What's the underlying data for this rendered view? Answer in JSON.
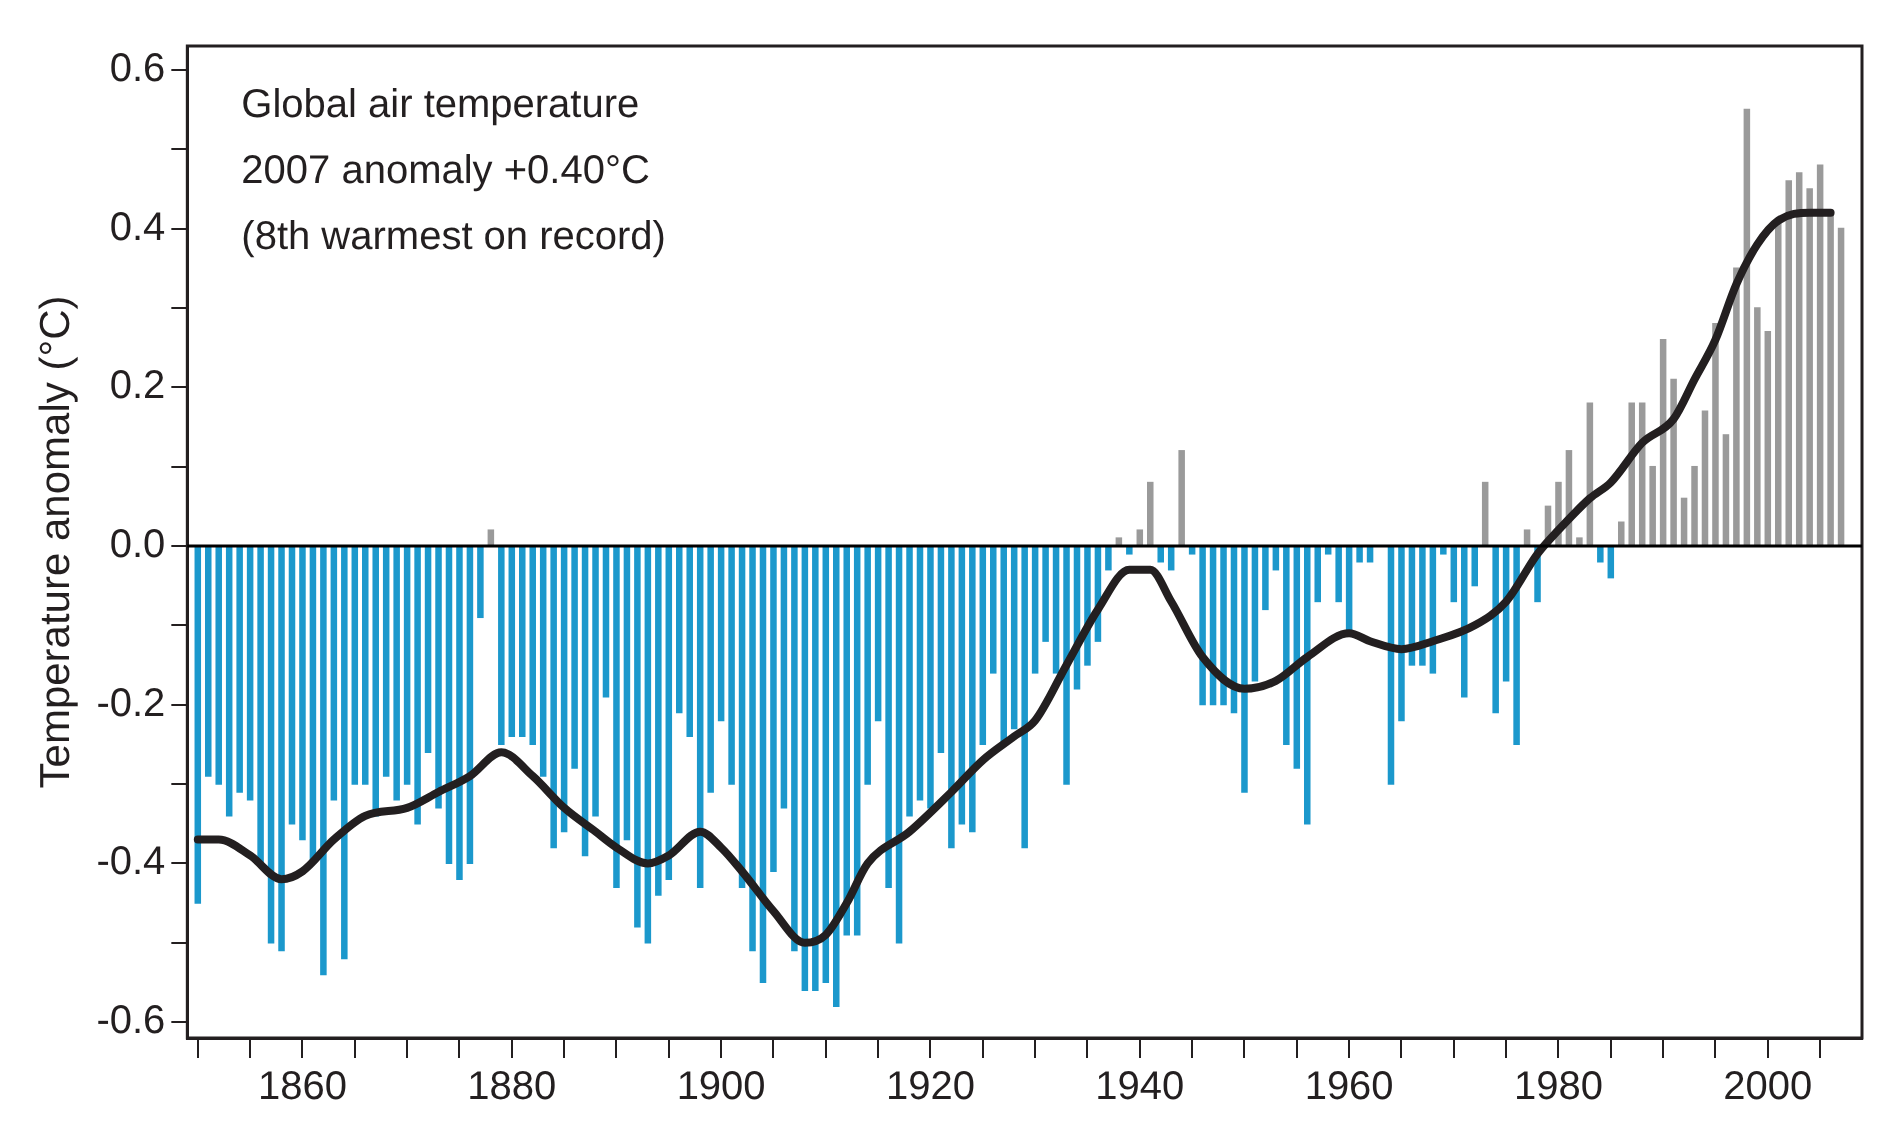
{
  "chart_data": {
    "type": "bar",
    "ylabel": "Temperature anomaly (°C)",
    "annotations": [
      "Global air temperature",
      "2007 anomaly +0.40°C",
      "(8th warmest on record)"
    ],
    "xlim": [
      1849,
      2009
    ],
    "xticks": [
      {
        "value": 1850,
        "label": null
      },
      {
        "value": 1855,
        "label": null
      },
      1860,
      {
        "value": 1865,
        "label": null
      },
      {
        "value": 1870,
        "label": null
      },
      {
        "value": 1875,
        "label": null
      },
      1880,
      {
        "value": 1885,
        "label": null
      },
      {
        "value": 1890,
        "label": null
      },
      {
        "value": 1895,
        "label": null
      },
      1900,
      {
        "value": 1905,
        "label": null
      },
      {
        "value": 1910,
        "label": null
      },
      {
        "value": 1915,
        "label": null
      },
      1920,
      {
        "value": 1925,
        "label": null
      },
      {
        "value": 1930,
        "label": null
      },
      {
        "value": 1935,
        "label": null
      },
      1940,
      {
        "value": 1945,
        "label": null
      },
      {
        "value": 1950,
        "label": null
      },
      {
        "value": 1955,
        "label": null
      },
      1960,
      {
        "value": 1965,
        "label": null
      },
      {
        "value": 1970,
        "label": null
      },
      {
        "value": 1975,
        "label": null
      },
      1980,
      {
        "value": 1985,
        "label": null
      },
      {
        "value": 1990,
        "label": null
      },
      {
        "value": 1995,
        "label": null
      },
      2000,
      {
        "value": 2005,
        "label": null
      }
    ],
    "ylim": [
      -0.62,
      0.63
    ],
    "yticks": [
      -0.6,
      {
        "value": -0.5,
        "label": null
      },
      -0.4,
      {
        "value": -0.3,
        "label": null
      },
      -0.2,
      {
        "value": -0.1,
        "label": null
      },
      {
        "value": 0,
        "label": "0.0"
      },
      {
        "value": 0.1,
        "label": null
      },
      0.2,
      {
        "value": 0.3,
        "label": null
      },
      0.4,
      {
        "value": 0.5,
        "label": null
      },
      0.6
    ],
    "ref_lines": [
      {
        "axis": "y",
        "value": 0,
        "color": "#000000"
      }
    ],
    "grid": false,
    "legend": false,
    "series": [
      {
        "x": [
          1850,
          1851,
          1852,
          1853,
          1854,
          1855,
          1856,
          1857,
          1858,
          1859,
          1860,
          1861,
          1862,
          1863,
          1864,
          1865,
          1866,
          1867,
          1868,
          1869,
          1870,
          1871,
          1872,
          1873,
          1874,
          1875,
          1876,
          1877,
          1878,
          1879,
          1880,
          1881,
          1882,
          1883,
          1884,
          1885,
          1886,
          1887,
          1888,
          1889,
          1890,
          1891,
          1892,
          1893,
          1894,
          1895,
          1896,
          1897,
          1898,
          1899,
          1900,
          1901,
          1902,
          1903,
          1904,
          1905,
          1906,
          1907,
          1908,
          1909,
          1910,
          1911,
          1912,
          1913,
          1914,
          1915,
          1916,
          1917,
          1918,
          1919,
          1920,
          1921,
          1922,
          1923,
          1924,
          1925,
          1926,
          1927,
          1928,
          1929,
          1930,
          1931,
          1932,
          1933,
          1934,
          1935,
          1936,
          1937,
          1938,
          1939,
          1940,
          1941,
          1942,
          1943,
          1944,
          1945,
          1946,
          1947,
          1948,
          1949,
          1950,
          1951,
          1952,
          1953,
          1954,
          1955,
          1956,
          1957,
          1958,
          1959,
          1960,
          1961,
          1962,
          1963,
          1964,
          1965,
          1966,
          1967,
          1968,
          1969,
          1970,
          1971,
          1972,
          1973,
          1974,
          1975,
          1976,
          1977,
          1978,
          1979,
          1980,
          1981,
          1982,
          1983,
          1984,
          1985,
          1986,
          1987,
          1988,
          1989,
          1990,
          1991,
          1992,
          1993,
          1994,
          1995,
          1996,
          1997,
          1998,
          1999,
          2000,
          2001,
          2002,
          2003,
          2004,
          2005,
          2006,
          2007
        ],
        "values": [
          -0.45,
          -0.29,
          -0.3,
          -0.34,
          -0.31,
          -0.32,
          -0.4,
          -0.5,
          -0.51,
          -0.35,
          -0.37,
          -0.4,
          -0.54,
          -0.32,
          -0.52,
          -0.3,
          -0.3,
          -0.34,
          -0.29,
          -0.32,
          -0.3,
          -0.35,
          -0.26,
          -0.33,
          -0.4,
          -0.42,
          -0.4,
          -0.09,
          0.02,
          -0.25,
          -0.24,
          -0.24,
          -0.25,
          -0.29,
          -0.38,
          -0.36,
          -0.28,
          -0.39,
          -0.34,
          -0.19,
          -0.43,
          -0.37,
          -0.48,
          -0.5,
          -0.44,
          -0.42,
          -0.21,
          -0.24,
          -0.43,
          -0.31,
          -0.22,
          -0.3,
          -0.43,
          -0.51,
          -0.55,
          -0.41,
          -0.33,
          -0.51,
          -0.56,
          -0.56,
          -0.55,
          -0.58,
          -0.49,
          -0.49,
          -0.3,
          -0.22,
          -0.43,
          -0.5,
          -0.34,
          -0.32,
          -0.33,
          -0.26,
          -0.38,
          -0.35,
          -0.36,
          -0.25,
          -0.16,
          -0.25,
          -0.23,
          -0.38,
          -0.16,
          -0.12,
          -0.16,
          -0.3,
          -0.18,
          -0.15,
          -0.12,
          -0.03,
          0.01,
          -0.01,
          0.02,
          0.08,
          -0.02,
          -0.03,
          0.12,
          -0.01,
          -0.2,
          -0.2,
          -0.2,
          -0.21,
          -0.31,
          -0.17,
          -0.08,
          -0.03,
          -0.25,
          -0.28,
          -0.35,
          -0.07,
          -0.01,
          -0.07,
          -0.11,
          -0.02,
          -0.02,
          0.0,
          -0.3,
          -0.22,
          -0.15,
          -0.15,
          -0.16,
          -0.01,
          -0.07,
          -0.19,
          -0.05,
          0.08,
          -0.21,
          -0.17,
          -0.25,
          0.02,
          -0.07,
          0.05,
          0.08,
          0.12,
          0.01,
          0.18,
          -0.02,
          -0.04,
          0.03,
          0.18,
          0.18,
          0.1,
          0.26,
          0.21,
          0.06,
          0.1,
          0.17,
          0.28,
          0.14,
          0.35,
          0.55,
          0.3,
          0.27,
          0.41,
          0.46,
          0.47,
          0.45,
          0.48,
          0.42,
          0.4
        ],
        "colors": [
          "#1b98cc",
          "#1b98cc",
          "#1b98cc",
          "#1b98cc",
          "#1b98cc",
          "#1b98cc",
          "#1b98cc",
          "#1b98cc",
          "#1b98cc",
          "#1b98cc",
          "#1b98cc",
          "#1b98cc",
          "#1b98cc",
          "#1b98cc",
          "#1b98cc",
          "#1b98cc",
          "#1b98cc",
          "#1b98cc",
          "#1b98cc",
          "#1b98cc",
          "#1b98cc",
          "#1b98cc",
          "#1b98cc",
          "#1b98cc",
          "#1b98cc",
          "#1b98cc",
          "#1b98cc",
          "#1b98cc",
          "#9a9a9a",
          "#1b98cc",
          "#1b98cc",
          "#1b98cc",
          "#1b98cc",
          "#1b98cc",
          "#1b98cc",
          "#1b98cc",
          "#1b98cc",
          "#1b98cc",
          "#1b98cc",
          "#1b98cc",
          "#1b98cc",
          "#1b98cc",
          "#1b98cc",
          "#1b98cc",
          "#1b98cc",
          "#1b98cc",
          "#1b98cc",
          "#1b98cc",
          "#1b98cc",
          "#1b98cc",
          "#1b98cc",
          "#1b98cc",
          "#1b98cc",
          "#1b98cc",
          "#1b98cc",
          "#1b98cc",
          "#1b98cc",
          "#1b98cc",
          "#1b98cc",
          "#1b98cc",
          "#1b98cc",
          "#1b98cc",
          "#1b98cc",
          "#1b98cc",
          "#1b98cc",
          "#1b98cc",
          "#1b98cc",
          "#1b98cc",
          "#1b98cc",
          "#1b98cc",
          "#1b98cc",
          "#1b98cc",
          "#1b98cc",
          "#1b98cc",
          "#1b98cc",
          "#1b98cc",
          "#1b98cc",
          "#1b98cc",
          "#1b98cc",
          "#1b98cc",
          "#1b98cc",
          "#1b98cc",
          "#1b98cc",
          "#1b98cc",
          "#1b98cc",
          "#1b98cc",
          "#1b98cc",
          "#1b98cc",
          "#9a9a9a",
          "#1b98cc",
          "#9a9a9a",
          "#9a9a9a",
          "#1b98cc",
          "#1b98cc",
          "#9a9a9a",
          "#1b98cc",
          "#1b98cc",
          "#1b98cc",
          "#1b98cc",
          "#1b98cc",
          "#1b98cc",
          "#1b98cc",
          "#1b98cc",
          "#1b98cc",
          "#1b98cc",
          "#1b98cc",
          "#1b98cc",
          "#1b98cc",
          "#1b98cc",
          "#1b98cc",
          "#1b98cc",
          "#1b98cc",
          "#1b98cc",
          "#1b98cc",
          "#1b98cc",
          "#1b98cc",
          "#1b98cc",
          "#1b98cc",
          "#1b98cc",
          "#1b98cc",
          "#1b98cc",
          "#1b98cc",
          "#1b98cc",
          "#9a9a9a",
          "#1b98cc",
          "#1b98cc",
          "#1b98cc",
          "#9a9a9a",
          "#1b98cc",
          "#9a9a9a",
          "#9a9a9a",
          "#9a9a9a",
          "#9a9a9a",
          "#9a9a9a",
          "#1b98cc",
          "#1b98cc",
          "#9a9a9a",
          "#9a9a9a",
          "#9a9a9a",
          "#9a9a9a",
          "#9a9a9a",
          "#9a9a9a",
          "#9a9a9a",
          "#9a9a9a",
          "#9a9a9a",
          "#9a9a9a",
          "#9a9a9a",
          "#9a9a9a",
          "#9a9a9a",
          "#9a9a9a",
          "#9a9a9a",
          "#9a9a9a",
          "#9a9a9a",
          "#9a9a9a",
          "#9a9a9a",
          "#9a9a9a",
          "#9a9a9a",
          "#9a9a9a"
        ]
      },
      {
        "type": "line",
        "color": "#231f20",
        "marker": "none",
        "line_style": "solid",
        "x": [
          1850,
          1852,
          1855,
          1858,
          1860,
          1863,
          1866,
          1870,
          1873,
          1876,
          1879,
          1882,
          1885,
          1888,
          1890,
          1893,
          1895,
          1898,
          1900,
          1902,
          1905,
          1908,
          1910,
          1912,
          1914,
          1918,
          1922,
          1925,
          1928,
          1930,
          1933,
          1936,
          1939,
          1941,
          1943,
          1946,
          1950,
          1953,
          1956,
          1960,
          1962,
          1965,
          1968,
          1972,
          1975,
          1978,
          1980,
          1983,
          1985,
          1988,
          1991,
          1993,
          1995,
          1997,
          1999,
          2001,
          2004,
          2006
        ],
        "values": [
          -0.37,
          -0.37,
          -0.39,
          -0.42,
          -0.41,
          -0.37,
          -0.34,
          -0.33,
          -0.31,
          -0.29,
          -0.26,
          -0.29,
          -0.33,
          -0.36,
          -0.38,
          -0.4,
          -0.39,
          -0.36,
          -0.38,
          -0.41,
          -0.46,
          -0.5,
          -0.49,
          -0.45,
          -0.4,
          -0.36,
          -0.31,
          -0.27,
          -0.24,
          -0.22,
          -0.15,
          -0.08,
          -0.03,
          -0.03,
          -0.07,
          -0.14,
          -0.18,
          -0.17,
          -0.14,
          -0.11,
          -0.12,
          -0.13,
          -0.12,
          -0.1,
          -0.07,
          -0.01,
          0.02,
          0.06,
          0.08,
          0.13,
          0.16,
          0.21,
          0.26,
          0.33,
          0.38,
          0.41,
          0.42,
          0.42
        ]
      }
    ]
  }
}
